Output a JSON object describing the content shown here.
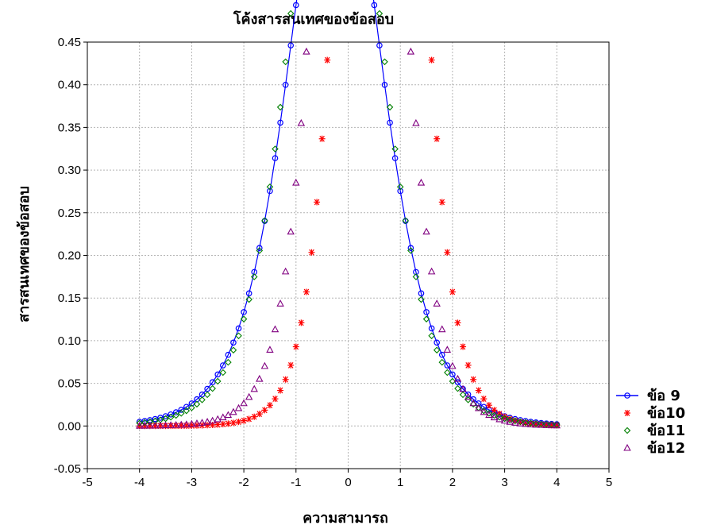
{
  "chart_data": {
    "type": "scatter",
    "title": "โค้งสารสนเทศของข้อสอบ",
    "xlabel": "ความสามารถ",
    "ylabel": "สารสนเทศของข้อสอบ",
    "xlim": [
      -5,
      5
    ],
    "ylim": [
      -0.05,
      0.45
    ],
    "x_ticks": [
      -5,
      -4,
      -3,
      -2,
      -1,
      0,
      1,
      2,
      3,
      4,
      5
    ],
    "y_ticks": [
      "-0.05",
      "0.00",
      "0.05",
      "0.10",
      "0.15",
      "0.20",
      "0.25",
      "0.30",
      "0.35",
      "0.40",
      "0.45"
    ],
    "grid": true,
    "legend_position": "right-bottom",
    "x_range": [
      -4,
      4
    ],
    "x_step": 0.1,
    "series": [
      {
        "name": "ข้อ 9",
        "marker": "circle-line",
        "color": "#0000ff",
        "a": 1.0,
        "b": -0.25,
        "c": 0.0
      },
      {
        "name": "ข้อ10",
        "marker": "asterisk",
        "color": "#ff0000",
        "a": 1.6,
        "b": 0.6,
        "c": 0.0
      },
      {
        "name": "ข้อ11",
        "marker": "diamond",
        "color": "#008000",
        "a": 1.08,
        "b": -0.25,
        "c": 0.0
      },
      {
        "name": "ข้อ12",
        "marker": "triangle",
        "color": "#800080",
        "a": 1.45,
        "b": 0.2,
        "c": 0.0
      }
    ]
  }
}
